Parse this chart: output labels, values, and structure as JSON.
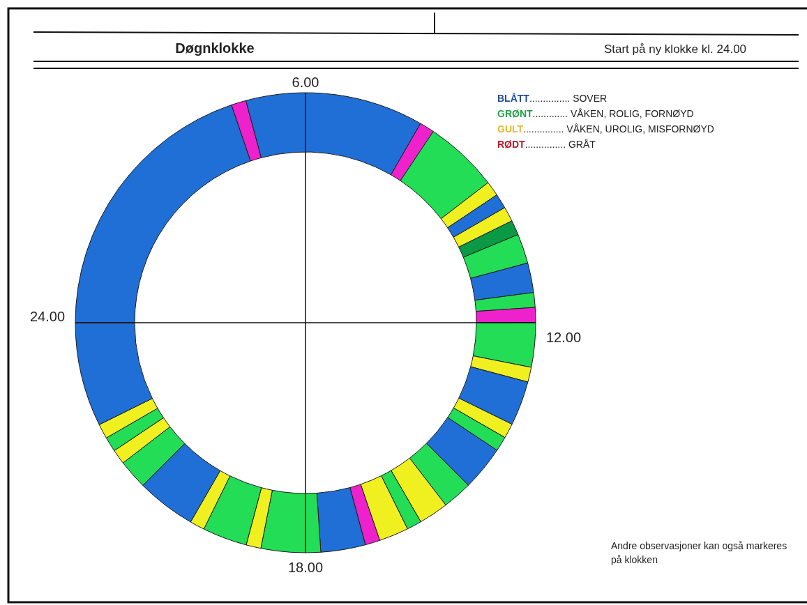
{
  "chart_data": {
    "type": "donut",
    "title": "Døgnklokke",
    "subtitle": "Start på ny klokke kl. 24.00",
    "categories": [
      null,
      null,
      null,
      null,
      null,
      null,
      null,
      null,
      null,
      null,
      null,
      null,
      null,
      null,
      null,
      null,
      null,
      null,
      null,
      null,
      null,
      null,
      null,
      null,
      null,
      null,
      null,
      null,
      null,
      null,
      null,
      null,
      null,
      null,
      null
    ],
    "values": [
      19.79,
      1.04,
      12.5,
      1.04,
      5.21,
      1.04,
      1.04,
      1.04,
      1.04,
      2.08,
      2.08,
      1.04,
      1.04,
      3.13,
      1.04,
      3.13,
      1.04,
      1.04,
      3.13,
      2.08,
      2.08,
      1.04,
      2.08,
      1.04,
      3.13,
      4.17,
      1.04,
      3.13,
      1.04,
      4.17,
      2.08,
      1.04,
      1.04,
      1.04,
      7.31
    ],
    "colors": [
      "#1f6fd6",
      "#ee22cc",
      "#1f6fd6",
      "#ee22cc",
      "#22dd55",
      "#f0f020",
      "#1f6fd6",
      "#f0f020",
      "#0a9a45",
      "#22dd55",
      "#1f6fd6",
      "#22dd55",
      "#ee22cc",
      "#22dd55",
      "#f0f020",
      "#1f6fd6",
      "#f0f020",
      "#22dd55",
      "#1f6fd6",
      "#22dd55",
      "#f0f020",
      "#22dd55",
      "#f0f020",
      "#ee22cc",
      "#1f6fd6",
      "#22dd55",
      "#f0f020",
      "#22dd55",
      "#f0f020",
      "#1f6fd6",
      "#22dd55",
      "#f0f020",
      "#22dd55",
      "#f0f020",
      "#1f6fd6"
    ],
    "annotations": [
      "6.00",
      "12.00",
      "18.00",
      "24.00",
      "BLÅTT............... SOVER",
      "GRØNT............. VÅKEN, ROLIG, FORNØYD",
      "GULT............... VÅKEN, UROLIG, MISFORNØYD",
      "RØDT............... GRÅT",
      "Andre observasjoner kan også markeres på klokken"
    ]
  }
}
